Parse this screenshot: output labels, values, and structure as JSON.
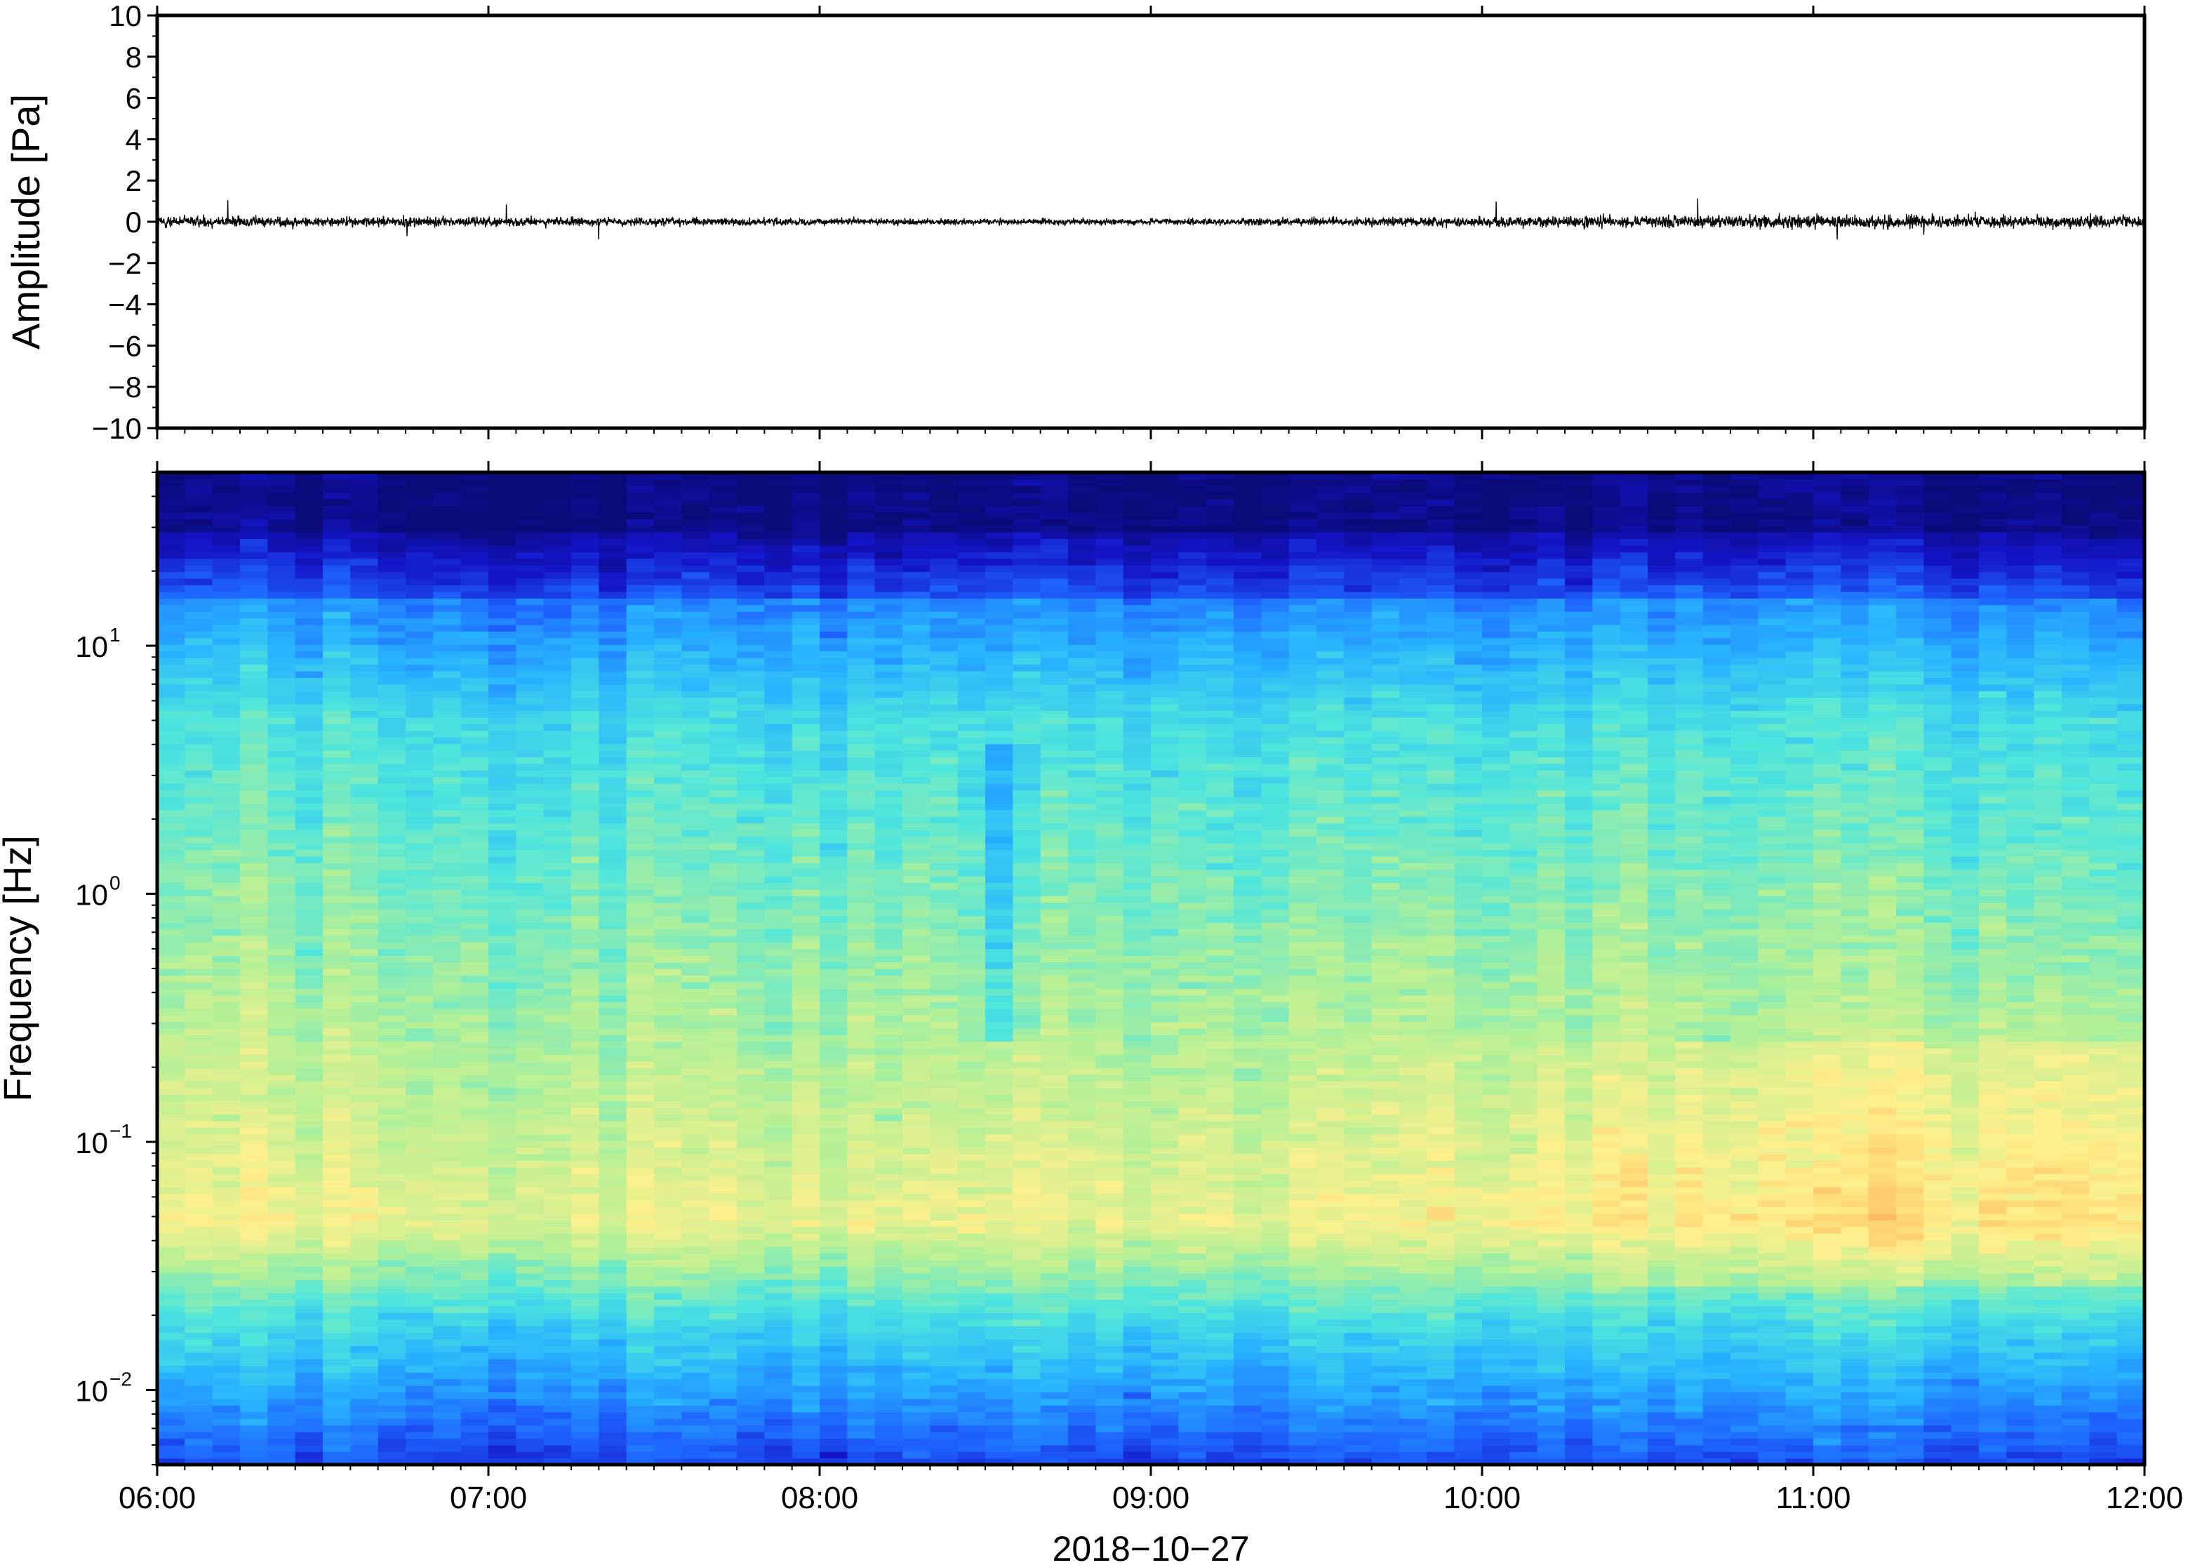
{
  "chart_data": [
    {
      "type": "line",
      "ylabel": "Amplitude [Pa]",
      "ylim": [
        -10,
        10
      ],
      "y_ticks": [
        "−10",
        "−8",
        "−6",
        "−4",
        "−2",
        "0",
        "2",
        "4",
        "6",
        "8",
        "10"
      ],
      "x_range": [
        "2018-10-27 06:00",
        "2018-10-27 12:00"
      ],
      "series": [
        {
          "color": "#000000",
          "envelope_hourly": {
            "x": [
              "06:00",
              "07:00",
              "08:00",
              "09:00",
              "10:00",
              "11:00",
              "12:00"
            ],
            "y_max": [
              0.5,
              0.4,
              0.3,
              0.25,
              0.45,
              0.6,
              0.5
            ]
          },
          "peak_max": 1.2,
          "peak_min": -1.0
        }
      ],
      "grid": false
    },
    {
      "type": "heatmap",
      "ylabel": "Frequency [Hz]",
      "xlabel": "2018−10−27",
      "y_scale": "log",
      "ylim": [
        0.005,
        50
      ],
      "y_ticks": [
        {
          "value": 0.01,
          "base": "10",
          "exp": "−2"
        },
        {
          "value": 0.1,
          "base": "10",
          "exp": "−1"
        },
        {
          "value": 1,
          "base": "10",
          "exp": "0"
        },
        {
          "value": 10,
          "base": "10",
          "exp": "1"
        }
      ],
      "x_ticks": [
        "06:00",
        "07:00",
        "08:00",
        "09:00",
        "10:00",
        "11:00",
        "12:00"
      ],
      "colormap": [
        "#0a0a78",
        "#1414c8",
        "#1e64ff",
        "#28b4ff",
        "#50e6dc",
        "#b4f096",
        "#fff08c",
        "#ffb45a",
        "#ff7832"
      ],
      "grid": false
    }
  ]
}
